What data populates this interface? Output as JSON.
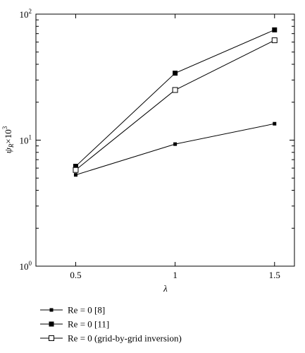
{
  "chart_data": {
    "type": "line",
    "x_scale": "linear",
    "y_scale": "log",
    "x_ticks": [
      0.5,
      1,
      1.5
    ],
    "x_tick_labels": [
      "0.5",
      "1",
      "1.5"
    ],
    "xlim": [
      0.3,
      1.6
    ],
    "ylim": [
      1,
      100
    ],
    "y_tick_labels": [
      "10",
      "10",
      "10"
    ],
    "y_tick_exponents": [
      "0",
      "1",
      "2"
    ],
    "xlabel": "λ",
    "ylabel_main": "ψ",
    "ylabel_sub": "R",
    "ylabel_mult": "×10",
    "ylabel_exp": "3",
    "grid": false,
    "legend_position": "bottom-left",
    "series": [
      {
        "name": "Re = 0 [8]",
        "marker": "small-filled-square",
        "x": [
          0.5,
          1,
          1.5
        ],
        "y": [
          5.3,
          9.3,
          13.5
        ]
      },
      {
        "name": "Re = 0 [11]",
        "marker": "large-filled-square",
        "x": [
          0.5,
          1,
          1.5
        ],
        "y": [
          6.2,
          34,
          75
        ]
      },
      {
        "name": "Re = 0 (grid-by-grid inversion)",
        "marker": "open-square",
        "x": [
          0.5,
          1,
          1.5
        ],
        "y": [
          5.8,
          25,
          62
        ]
      }
    ]
  }
}
